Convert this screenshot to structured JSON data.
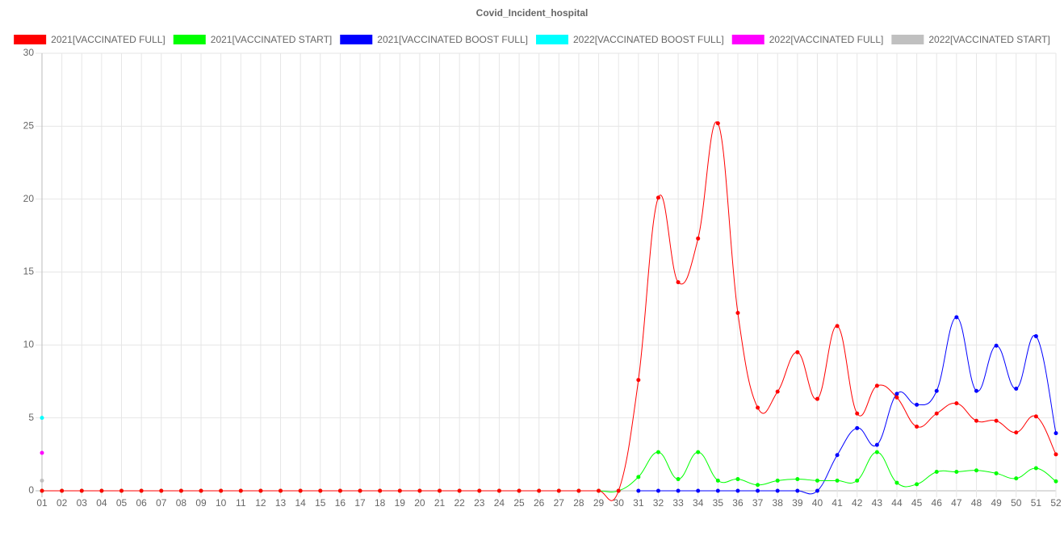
{
  "chart_data": {
    "type": "line",
    "title": "Covid_Incident_hospital",
    "categories": [
      "01",
      "02",
      "03",
      "04",
      "05",
      "06",
      "07",
      "08",
      "09",
      "10",
      "11",
      "12",
      "13",
      "14",
      "15",
      "16",
      "17",
      "18",
      "19",
      "20",
      "21",
      "22",
      "23",
      "24",
      "25",
      "26",
      "27",
      "28",
      "29",
      "30",
      "31",
      "32",
      "33",
      "34",
      "35",
      "36",
      "37",
      "38",
      "39",
      "40",
      "41",
      "42",
      "43",
      "44",
      "45",
      "46",
      "47",
      "48",
      "49",
      "50",
      "51",
      "52"
    ],
    "ylim": [
      0,
      30
    ],
    "yticks": [
      0,
      5,
      10,
      15,
      20,
      25,
      30
    ],
    "grid": true,
    "legend": "top",
    "series": [
      {
        "name": "2021[VACCINATED FULL]",
        "color": "#ff0000",
        "values": [
          0,
          0,
          0,
          0,
          0,
          0,
          0,
          0,
          0,
          0,
          0,
          0,
          0,
          0,
          0,
          0,
          0,
          0,
          0,
          0,
          0,
          0,
          0,
          0,
          0,
          0,
          0,
          0,
          0,
          0,
          7.6,
          20.1,
          14.3,
          17.3,
          25.2,
          12.2,
          5.7,
          6.8,
          9.5,
          6.3,
          11.3,
          5.3,
          7.2,
          6.4,
          4.4,
          5.3,
          6.0,
          4.8,
          4.8,
          4.0,
          5.1,
          2.5
        ]
      },
      {
        "name": "2021[VACCINATED START]",
        "color": "#00ff00",
        "values": [
          0,
          0,
          0,
          0,
          0,
          0,
          0,
          0,
          0,
          0,
          0,
          0,
          0,
          0,
          0,
          0,
          0,
          0,
          0,
          0,
          0,
          0,
          0,
          0,
          0,
          0,
          0,
          0,
          0,
          0,
          0.95,
          2.65,
          0.8,
          2.65,
          0.7,
          0.8,
          0.4,
          0.7,
          0.8,
          0.7,
          0.7,
          0.7,
          2.65,
          0.55,
          0.45,
          1.3,
          1.3,
          1.4,
          1.2,
          0.85,
          1.55,
          0.65
        ]
      },
      {
        "name": "2021[VACCINATED BOOST FULL]",
        "color": "#0000ff",
        "values": [
          null,
          null,
          null,
          null,
          null,
          null,
          null,
          null,
          null,
          null,
          null,
          null,
          null,
          null,
          null,
          null,
          null,
          null,
          null,
          null,
          null,
          null,
          null,
          null,
          null,
          null,
          null,
          null,
          null,
          null,
          0,
          0,
          0,
          0,
          0,
          0,
          0,
          0,
          0,
          0,
          2.45,
          4.3,
          3.15,
          6.65,
          5.9,
          6.85,
          11.9,
          6.85,
          9.95,
          7.0,
          10.6,
          3.95
        ]
      },
      {
        "name": "2022[VACCINATED BOOST FULL]",
        "color": "#00ffff",
        "values": [
          5.0,
          null,
          null,
          null,
          null,
          null,
          null,
          null,
          null,
          null,
          null,
          null,
          null,
          null,
          null,
          null,
          null,
          null,
          null,
          null,
          null,
          null,
          null,
          null,
          null,
          null,
          null,
          null,
          null,
          null,
          null,
          null,
          null,
          null,
          null,
          null,
          null,
          null,
          null,
          null,
          null,
          null,
          null,
          null,
          null,
          null,
          null,
          null,
          null,
          null,
          null,
          null
        ]
      },
      {
        "name": "2022[VACCINATED FULL]",
        "color": "#ff00ff",
        "values": [
          2.6,
          null,
          null,
          null,
          null,
          null,
          null,
          null,
          null,
          null,
          null,
          null,
          null,
          null,
          null,
          null,
          null,
          null,
          null,
          null,
          null,
          null,
          null,
          null,
          null,
          null,
          null,
          null,
          null,
          null,
          null,
          null,
          null,
          null,
          null,
          null,
          null,
          null,
          null,
          null,
          null,
          null,
          null,
          null,
          null,
          null,
          null,
          null,
          null,
          null,
          null,
          null
        ]
      },
      {
        "name": "2022[VACCINATED START]",
        "color": "#c0c0c0",
        "values": [
          0.7,
          null,
          null,
          null,
          null,
          null,
          null,
          null,
          null,
          null,
          null,
          null,
          null,
          null,
          null,
          null,
          null,
          null,
          null,
          null,
          null,
          null,
          null,
          null,
          null,
          null,
          null,
          null,
          null,
          null,
          null,
          null,
          null,
          null,
          null,
          null,
          null,
          null,
          null,
          null,
          null,
          null,
          null,
          null,
          null,
          null,
          null,
          null,
          null,
          null,
          null,
          null
        ]
      }
    ]
  }
}
